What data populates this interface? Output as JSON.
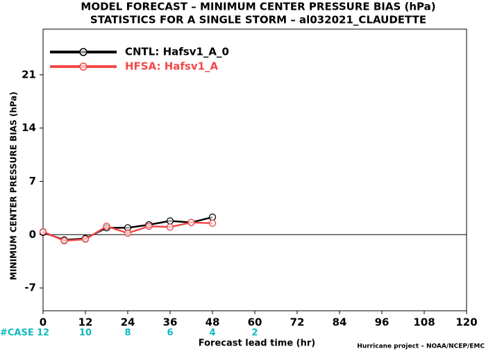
{
  "chart_data": {
    "type": "line",
    "title": "MODEL FORECAST – MINIMUM CENTER PRESSURE BIAS (hPa)",
    "subtitle": "STATISTICS FOR A SINGLE STORM – al032021_CLAUDETTE",
    "x_label": "Forecast lead time (hr)",
    "y_label": "MINIMUM CENTER PRESSURE BIAS (hPa)",
    "footer": "Hurricane project – NOAA/NCEP/EMC",
    "x": [
      0,
      6,
      12,
      18,
      24,
      30,
      36,
      42,
      48
    ],
    "series": [
      {
        "name": "CNTL: Hafsv1_A_0",
        "color": "#000000",
        "values": [
          0.3,
          -0.7,
          -0.5,
          0.9,
          0.9,
          1.3,
          1.8,
          1.6,
          2.3
        ]
      },
      {
        "name": "HFSA: Hafsv1_A",
        "color": "#f04848",
        "values": [
          0.4,
          -0.8,
          -0.6,
          1.1,
          0.2,
          1.1,
          1.0,
          1.6,
          1.5
        ]
      }
    ],
    "xlim": [
      0,
      120
    ],
    "xticks": [
      0,
      12,
      24,
      36,
      48,
      60,
      72,
      84,
      96,
      108,
      120
    ],
    "ylim": [
      -10,
      27
    ],
    "yticks": [
      -7,
      0,
      7,
      14,
      21
    ],
    "legend": "upper left",
    "cases": {
      "label": "#CASE",
      "color": "#10b8c0",
      "x": [
        0,
        12,
        24,
        36,
        48,
        60
      ],
      "values": [
        12,
        10,
        8,
        6,
        4,
        2
      ]
    }
  }
}
